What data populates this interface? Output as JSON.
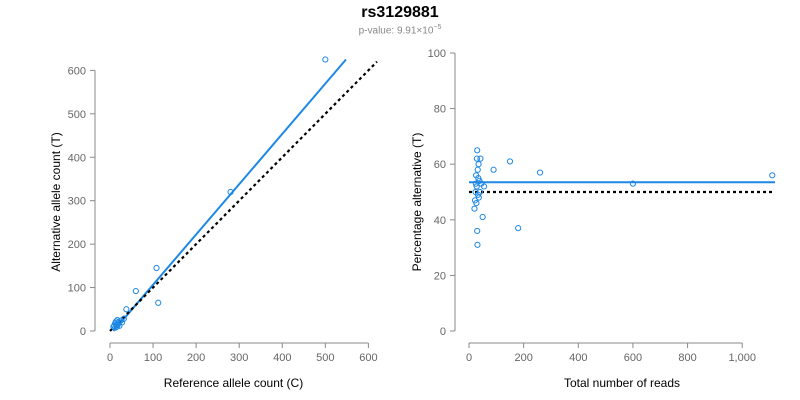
{
  "title": "rs3129881",
  "subtitle": {
    "prefix": "p-value: 9.91×10",
    "exponent": "−5"
  },
  "colors": {
    "points": "#1e88e5",
    "fit_line": "#1e88e5",
    "reference_line": "#000000",
    "axis": "#888888",
    "tick_text": "#666666"
  },
  "chart_data": [
    {
      "type": "scatter",
      "title": "",
      "xlabel": "Reference allele count (C)",
      "ylabel": "Alternative allele count (T)",
      "xlim": [
        0,
        620
      ],
      "ylim": [
        0,
        640
      ],
      "xticks": [
        0,
        100,
        200,
        300,
        400,
        500,
        600
      ],
      "xtick_labels": [
        "0",
        "100",
        "200",
        "300",
        "400",
        "500",
        "600"
      ],
      "yticks": [
        0,
        100,
        200,
        300,
        400,
        500,
        600
      ],
      "ytick_labels": [
        "0",
        "100",
        "200",
        "300",
        "400",
        "500",
        "600"
      ],
      "grid": false,
      "x": [
        8,
        10,
        12,
        13,
        14,
        15,
        16,
        17,
        18,
        20,
        22,
        25,
        28,
        32,
        38,
        60,
        108,
        112,
        280,
        500
      ],
      "y": [
        10,
        12,
        18,
        8,
        22,
        15,
        10,
        25,
        14,
        20,
        12,
        24,
        20,
        28,
        50,
        92,
        145,
        65,
        320,
        625
      ],
      "lines": [
        {
          "name": "fit",
          "style": "solid",
          "x": [
            8,
            548
          ],
          "y": [
            0,
            625
          ]
        },
        {
          "name": "expected",
          "style": "dotted",
          "x": [
            0,
            620
          ],
          "y": [
            0,
            620
          ]
        }
      ]
    },
    {
      "type": "scatter",
      "title": "",
      "xlabel": "Total number of reads",
      "ylabel": "Percentage alternative (T)",
      "xlim": [
        0,
        1120
      ],
      "ylim": [
        0,
        100
      ],
      "xticks": [
        0,
        200,
        400,
        600,
        800,
        1000
      ],
      "xtick_labels": [
        "0",
        "200",
        "400",
        "600",
        "800",
        "1,000"
      ],
      "yticks": [
        0,
        20,
        40,
        60,
        80,
        100
      ],
      "ytick_labels": [
        "0",
        "20",
        "40",
        "60",
        "80",
        "100"
      ],
      "grid": false,
      "x": [
        20,
        22,
        24,
        25,
        26,
        27,
        28,
        29,
        30,
        30,
        31,
        32,
        33,
        34,
        35,
        36,
        38,
        40,
        42,
        45,
        50,
        55,
        90,
        150,
        180,
        260,
        600,
        1110
      ],
      "y": [
        44,
        47,
        50,
        53,
        56,
        46,
        52,
        62,
        65,
        36,
        31,
        58,
        49,
        55,
        60,
        48,
        54,
        50,
        62,
        53,
        41,
        52,
        58,
        61,
        37,
        57,
        53,
        56
      ],
      "lines": [
        {
          "name": "fit",
          "style": "solid",
          "x": [
            0,
            1120
          ],
          "y": [
            53.5,
            53.5
          ]
        },
        {
          "name": "expected",
          "style": "dotted",
          "x": [
            0,
            1120
          ],
          "y": [
            50,
            50
          ]
        }
      ]
    }
  ]
}
